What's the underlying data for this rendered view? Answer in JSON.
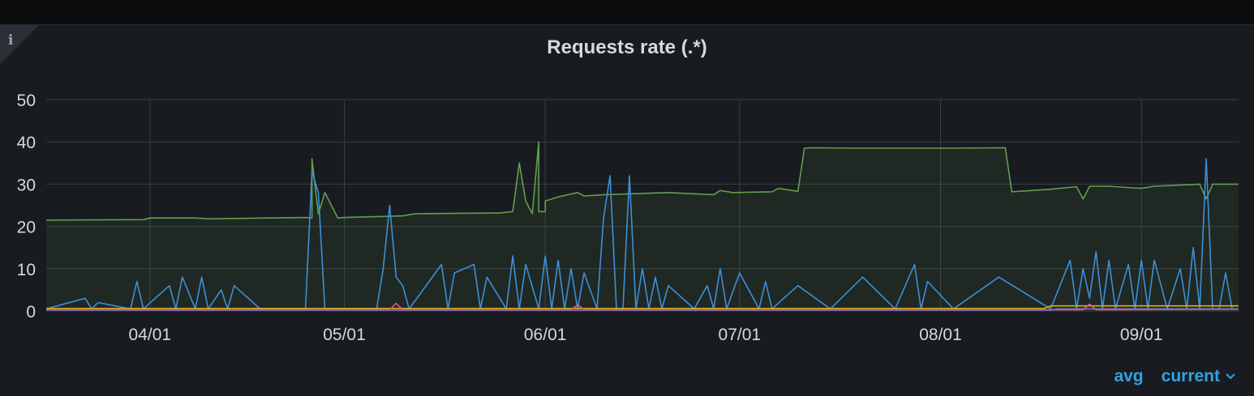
{
  "panel": {
    "title": "Requests rate (.*)",
    "info_icon": "info-icon"
  },
  "legend": {
    "items": [
      "avg",
      "current"
    ],
    "sort_icon": "chevron-down-icon"
  },
  "colors": {
    "green": "#629e51",
    "blue": "#3d8fd6",
    "yellow": "#e5ac0e",
    "pink": "#e05a8c",
    "purple": "#806eb7",
    "grid": "#3a3d44",
    "text": "#d8d9da",
    "green_fill": "rgba(98,158,81,0.10)"
  },
  "chart_data": {
    "type": "line",
    "title": "Requests rate (.*)",
    "xlabel": "",
    "ylabel": "",
    "ylim": [
      0,
      50
    ],
    "yticks": [
      0,
      10,
      20,
      30,
      40,
      50
    ],
    "xlim": [
      "2023-03-16",
      "2023-09-16"
    ],
    "xticks": [
      "2023-04-01",
      "2023-05-01",
      "2023-06-01",
      "2023-07-01",
      "2023-08-01",
      "2023-09-01"
    ],
    "xtick_labels": [
      "04/01",
      "05/01",
      "06/01",
      "07/01",
      "08/01",
      "09/01"
    ],
    "grid": true,
    "legend_placement": "bottom-right",
    "series": [
      {
        "color": "#629e51",
        "fill": true,
        "x": [
          "2023-03-16",
          "2023-03-31",
          "2023-04-01",
          "2023-04-08",
          "2023-04-10",
          "2023-04-25",
          "2023-04-26",
          "2023-04-26",
          "2023-04-27",
          "2023-04-28",
          "2023-04-30",
          "2023-05-01",
          "2023-05-10",
          "2023-05-12",
          "2023-05-25",
          "2023-05-27",
          "2023-05-28",
          "2023-05-29",
          "2023-05-30",
          "2023-05-31",
          "2023-05-31",
          "2023-06-01",
          "2023-06-01",
          "2023-06-03",
          "2023-06-06",
          "2023-06-07",
          "2023-06-10",
          "2023-06-20",
          "2023-06-27",
          "2023-06-28",
          "2023-06-30",
          "2023-07-06",
          "2023-07-07",
          "2023-07-10",
          "2023-07-11",
          "2023-07-12",
          "2023-07-20",
          "2023-08-01",
          "2023-08-11",
          "2023-08-12",
          "2023-08-13",
          "2023-08-18",
          "2023-08-22",
          "2023-08-23",
          "2023-08-24",
          "2023-08-27",
          "2023-09-01",
          "2023-09-03",
          "2023-09-10",
          "2023-09-11",
          "2023-09-12",
          "2023-09-16"
        ],
        "values": [
          21.5,
          21.6,
          22.0,
          22.0,
          21.8,
          22.1,
          22.0,
          36.0,
          23.0,
          28.0,
          22.0,
          22.1,
          22.5,
          23.0,
          23.2,
          23.5,
          35.0,
          26.0,
          23.0,
          40.0,
          23.5,
          23.5,
          26.0,
          27.0,
          28.0,
          27.2,
          27.5,
          28.0,
          27.5,
          28.5,
          28.0,
          28.2,
          29.0,
          28.3,
          38.5,
          38.6,
          38.5,
          38.5,
          38.6,
          28.2,
          28.3,
          28.8,
          29.4,
          26.5,
          29.5,
          29.5,
          29.0,
          29.5,
          30.0,
          26.5,
          30.0,
          30.0
        ]
      },
      {
        "color": "#3d8fd6",
        "fill": false,
        "x": [
          "2023-03-16",
          "2023-03-22",
          "2023-03-23",
          "2023-03-24",
          "2023-03-29",
          "2023-03-30",
          "2023-03-31",
          "2023-04-04",
          "2023-04-05",
          "2023-04-06",
          "2023-04-08",
          "2023-04-09",
          "2023-04-10",
          "2023-04-12",
          "2023-04-13",
          "2023-04-14",
          "2023-04-18",
          "2023-04-25",
          "2023-04-26",
          "2023-04-27",
          "2023-04-28",
          "2023-04-29",
          "2023-05-02",
          "2023-05-06",
          "2023-05-07",
          "2023-05-08",
          "2023-05-09",
          "2023-05-10",
          "2023-05-11",
          "2023-05-16",
          "2023-05-17",
          "2023-05-18",
          "2023-05-21",
          "2023-05-22",
          "2023-05-23",
          "2023-05-26",
          "2023-05-27",
          "2023-05-28",
          "2023-05-29",
          "2023-05-31",
          "2023-06-01",
          "2023-06-02",
          "2023-06-03",
          "2023-06-04",
          "2023-06-05",
          "2023-06-06",
          "2023-06-07",
          "2023-06-09",
          "2023-06-10",
          "2023-06-11",
          "2023-06-12",
          "2023-06-13",
          "2023-06-14",
          "2023-06-15",
          "2023-06-16",
          "2023-06-17",
          "2023-06-18",
          "2023-06-19",
          "2023-06-20",
          "2023-06-24",
          "2023-06-26",
          "2023-06-27",
          "2023-06-28",
          "2023-06-29",
          "2023-07-01",
          "2023-07-04",
          "2023-07-05",
          "2023-07-06",
          "2023-07-10",
          "2023-07-15",
          "2023-07-20",
          "2023-07-25",
          "2023-07-28",
          "2023-07-29",
          "2023-07-30",
          "2023-08-03",
          "2023-08-10",
          "2023-08-18",
          "2023-08-21",
          "2023-08-22",
          "2023-08-23",
          "2023-08-24",
          "2023-08-25",
          "2023-08-26",
          "2023-08-27",
          "2023-08-28",
          "2023-08-30",
          "2023-08-31",
          "2023-09-01",
          "2023-09-02",
          "2023-09-03",
          "2023-09-05",
          "2023-09-07",
          "2023-09-08",
          "2023-09-09",
          "2023-09-10",
          "2023-09-11",
          "2023-09-12",
          "2023-09-13",
          "2023-09-14",
          "2023-09-15",
          "2023-09-16"
        ],
        "values": [
          0.5,
          3,
          0.5,
          2,
          0.5,
          7,
          0.5,
          6,
          0.5,
          8,
          0.5,
          8,
          0.5,
          5,
          0.5,
          6,
          0.5,
          0.5,
          33,
          28,
          0.5,
          0.5,
          0.5,
          0.5,
          10,
          25,
          8,
          6,
          0.5,
          11,
          0.5,
          9,
          11,
          0.5,
          8,
          0.5,
          13,
          0.5,
          11,
          0.5,
          13,
          0.5,
          12,
          0.5,
          10,
          0.5,
          9,
          0.5,
          22,
          32,
          0.5,
          0.5,
          32,
          0.5,
          10,
          0.5,
          8,
          0.5,
          6,
          0.5,
          6,
          0.5,
          10,
          0.5,
          9,
          0.5,
          7,
          0.5,
          6,
          0.5,
          8,
          0.5,
          11,
          0.5,
          7,
          0.5,
          8,
          0.5,
          12,
          0.5,
          10,
          3,
          14,
          0.5,
          12,
          0.5,
          11,
          0.5,
          12,
          0.5,
          12,
          0.5,
          10,
          0.5,
          15,
          0.5,
          36,
          0.5,
          0.5,
          9,
          0.5,
          0.5
        ]
      },
      {
        "color": "#e5ac0e",
        "fill": false,
        "x": [
          "2023-03-16",
          "2023-08-17",
          "2023-08-18",
          "2023-09-16"
        ],
        "values": [
          0.6,
          0.6,
          1.2,
          1.2
        ]
      },
      {
        "color": "#e05a8c",
        "fill": false,
        "x": [
          "2023-03-16",
          "2023-05-08",
          "2023-05-09",
          "2023-05-10",
          "2023-06-05",
          "2023-06-06",
          "2023-06-07",
          "2023-08-23",
          "2023-08-24",
          "2023-08-25",
          "2023-09-16"
        ],
        "values": [
          0.3,
          0.3,
          1.8,
          0.3,
          0.3,
          1.5,
          0.3,
          0.3,
          1.6,
          0.3,
          0.4
        ]
      },
      {
        "color": "#806eb7",
        "fill": false,
        "x": [
          "2023-03-16",
          "2023-08-18",
          "2023-08-19",
          "2023-09-16"
        ],
        "values": [
          0.2,
          0.2,
          0.5,
          0.5
        ]
      }
    ]
  }
}
